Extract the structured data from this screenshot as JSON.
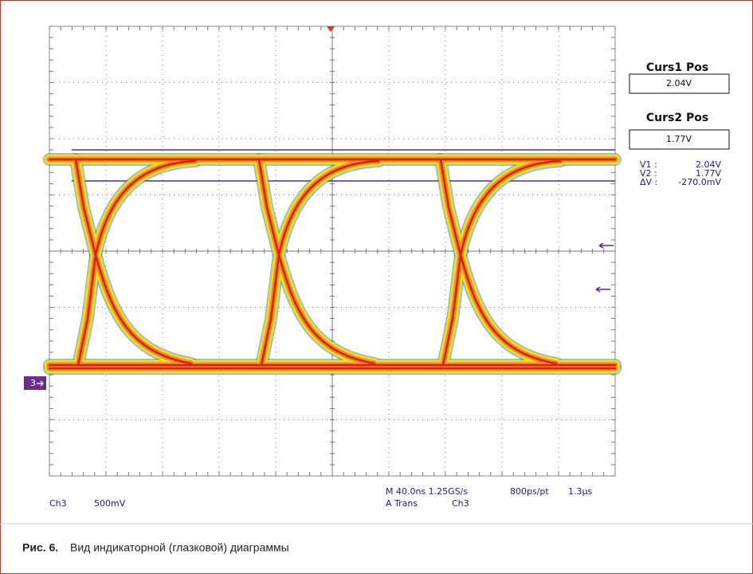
{
  "cursors": [
    {
      "label": "Curs1 Pos",
      "value": "2.04V"
    },
    {
      "label": "Curs2 Pos",
      "value": "1.77V"
    }
  ],
  "readout": [
    {
      "label": "V1 :",
      "value": "2.04V"
    },
    {
      "label": "V2 :",
      "value": "1.77V"
    },
    {
      "label": "ΔV :",
      "value": "-270.0mV"
    }
  ],
  "channel_marker": "3",
  "status": {
    "channel": "Ch3",
    "scale": "500mV",
    "timebase": "M 40.0ns 1.25GS/s",
    "resolution": "800ps/pt",
    "record": "1.3µs",
    "trigger_mode": "A Trans",
    "trigger_source": "Ch3"
  },
  "caption": {
    "label": "Рис. 6.",
    "text": "Вид индикаторной (глазковой) диаграммы"
  }
}
